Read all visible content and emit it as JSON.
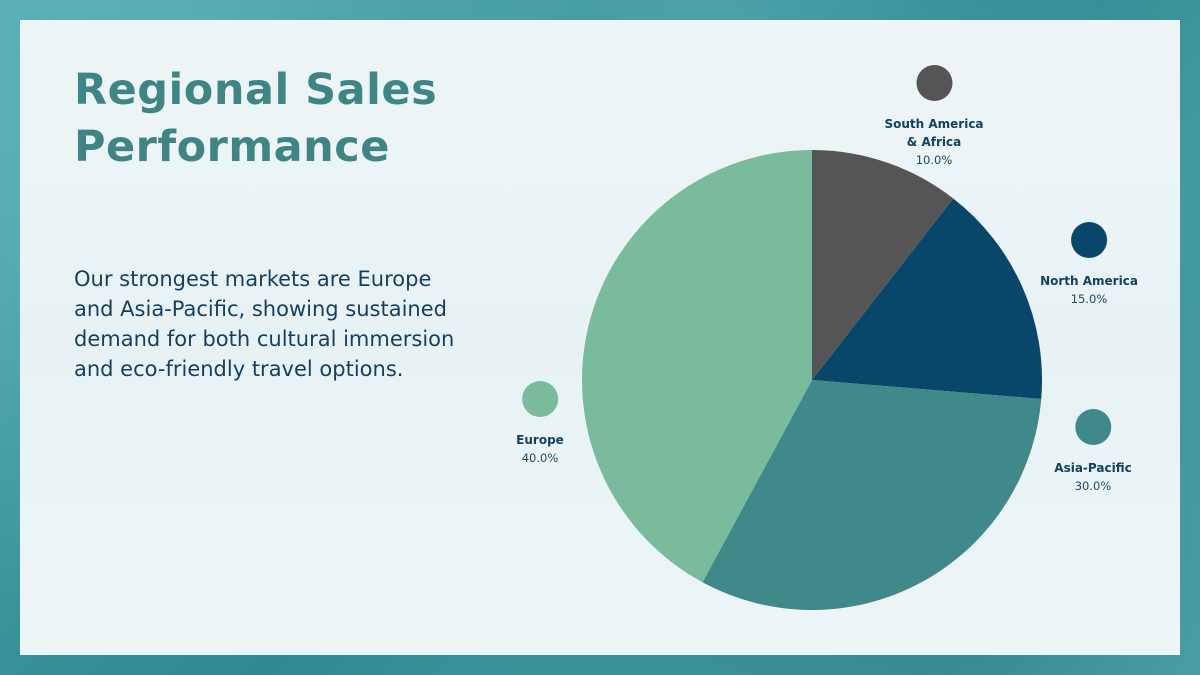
{
  "slide": {
    "title_line1": "Regional Sales",
    "title_line2": "Performance",
    "body": "Our strongest markets are Europe and Asia-Pacific, showing sustained demand for both cultural immersion and eco-friendly travel options."
  },
  "colors": {
    "title": "#3f8585",
    "body_text": "#163f5e",
    "legend_text": "#12425f",
    "panel_bg": "#edf5f7",
    "frame_bg": "#3e929a"
  },
  "legend": [
    {
      "name": "South America",
      "name2": "& Africa",
      "pct": "10.0%",
      "color": "#555555"
    },
    {
      "name": "North America",
      "pct": "15.0%",
      "color": "#08466a"
    },
    {
      "name": "Asia-Pacific",
      "pct": "30.0%",
      "color": "#40898a"
    },
    {
      "name": "Europe",
      "pct": "40.0%",
      "color": "#79bb9c"
    }
  ],
  "chart_data": {
    "type": "pie",
    "title": "",
    "categories": [
      "South America & Africa",
      "North America",
      "Asia-Pacific",
      "Europe"
    ],
    "values": [
      10.0,
      15.0,
      30.0,
      40.0
    ],
    "unit": "%",
    "colors": [
      "#555555",
      "#08466a",
      "#40898a",
      "#79bb9c"
    ],
    "start_angle_deg": -90,
    "direction": "clockwise",
    "legend_position": "around-pie"
  }
}
